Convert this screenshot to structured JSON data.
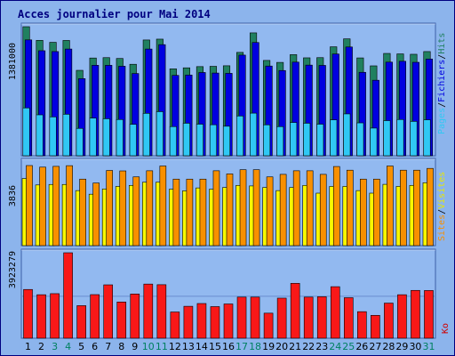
{
  "chart_data": [
    {
      "type": "bar",
      "title": "Acces journalier pour Mai 2014",
      "categories": [
        "1",
        "2",
        "3",
        "4",
        "5",
        "6",
        "7",
        "8",
        "9",
        "10",
        "11",
        "12",
        "13",
        "14",
        "15",
        "16",
        "17",
        "18",
        "19",
        "20",
        "21",
        "22",
        "23",
        "24",
        "25",
        "26",
        "27",
        "28",
        "29",
        "30",
        "31"
      ],
      "weekend_days": [
        "3",
        "4",
        "10",
        "11",
        "17",
        "18",
        "24",
        "25",
        "31"
      ],
      "ymax_label": "1381000",
      "ymax": 1381000,
      "series": [
        {
          "name": "Pages",
          "color": "#30c8f4",
          "values": [
            512000,
            438000,
            416000,
            444000,
            293000,
            403000,
            396000,
            388000,
            336000,
            454000,
            472000,
            312000,
            348000,
            338000,
            332000,
            316000,
            426000,
            456000,
            331000,
            312000,
            356000,
            348000,
            338000,
            384000,
            448000,
            352000,
            296000,
            376000,
            388000,
            368000,
            385000
          ]
        },
        {
          "name": "Fichiers",
          "color": "#0000e0",
          "values": [
            1240000,
            1124000,
            1115000,
            1142000,
            825000,
            968000,
            968000,
            958000,
            880000,
            1142000,
            1189000,
            860000,
            864000,
            891000,
            885000,
            882000,
            1077000,
            1212000,
            960000,
            912000,
            1002000,
            970000,
            967000,
            1089000,
            1164000,
            893000,
            808000,
            1002000,
            1011000,
            1000000,
            1035000
          ]
        },
        {
          "name": "Hits",
          "color": "#208060",
          "values": [
            1381000,
            1235000,
            1214000,
            1234000,
            914000,
            1046000,
            1050000,
            1041000,
            979000,
            1239000,
            1248000,
            930000,
            941000,
            954000,
            957000,
            963000,
            1106000,
            1315000,
            1020000,
            999000,
            1082000,
            1048000,
            1050000,
            1166000,
            1251000,
            1047000,
            962000,
            1095000,
            1090000,
            1086000,
            1115000
          ]
        }
      ]
    },
    {
      "type": "bar",
      "ymax_label": "3836",
      "ymax": 3836,
      "series": [
        {
          "name": "Visites",
          "color": "#f89000",
          "values": [
            3836,
            3760,
            3797,
            3830,
            3186,
            3000,
            3600,
            3579,
            3293,
            3586,
            3814,
            3186,
            3186,
            3186,
            3586,
            3436,
            3636,
            3636,
            3293,
            3414,
            3586,
            3586,
            3414,
            3790,
            3614,
            3186,
            3186,
            3814,
            3614,
            3614,
            3700
          ]
        },
        {
          "name": "Sites",
          "color": "#f8f800",
          "values": [
            3214,
            2907,
            2930,
            2930,
            2636,
            2464,
            2714,
            2836,
            2886,
            3036,
            3036,
            2700,
            2626,
            2764,
            2700,
            2786,
            2886,
            2860,
            2786,
            2636,
            2786,
            2886,
            2514,
            2836,
            2836,
            2636,
            2514,
            2936,
            2836,
            2886,
            3014
          ]
        }
      ]
    },
    {
      "type": "bar",
      "ymax_label": "3923279",
      "ymax": 3923279,
      "series": [
        {
          "name": "Ko",
          "color": "#f81818",
          "values": [
            2238000,
            1997000,
            2046000,
            3923279,
            1495000,
            2002000,
            2451000,
            1663000,
            2031000,
            2486000,
            2457000,
            1204000,
            1466000,
            1593000,
            1451000,
            1573000,
            1888000,
            1888000,
            1150000,
            1840000,
            2520000,
            1888000,
            1905000,
            2366000,
            1860000,
            1219000,
            1050000,
            1612000,
            1997000,
            2196000,
            2190000
          ]
        }
      ]
    }
  ]
}
